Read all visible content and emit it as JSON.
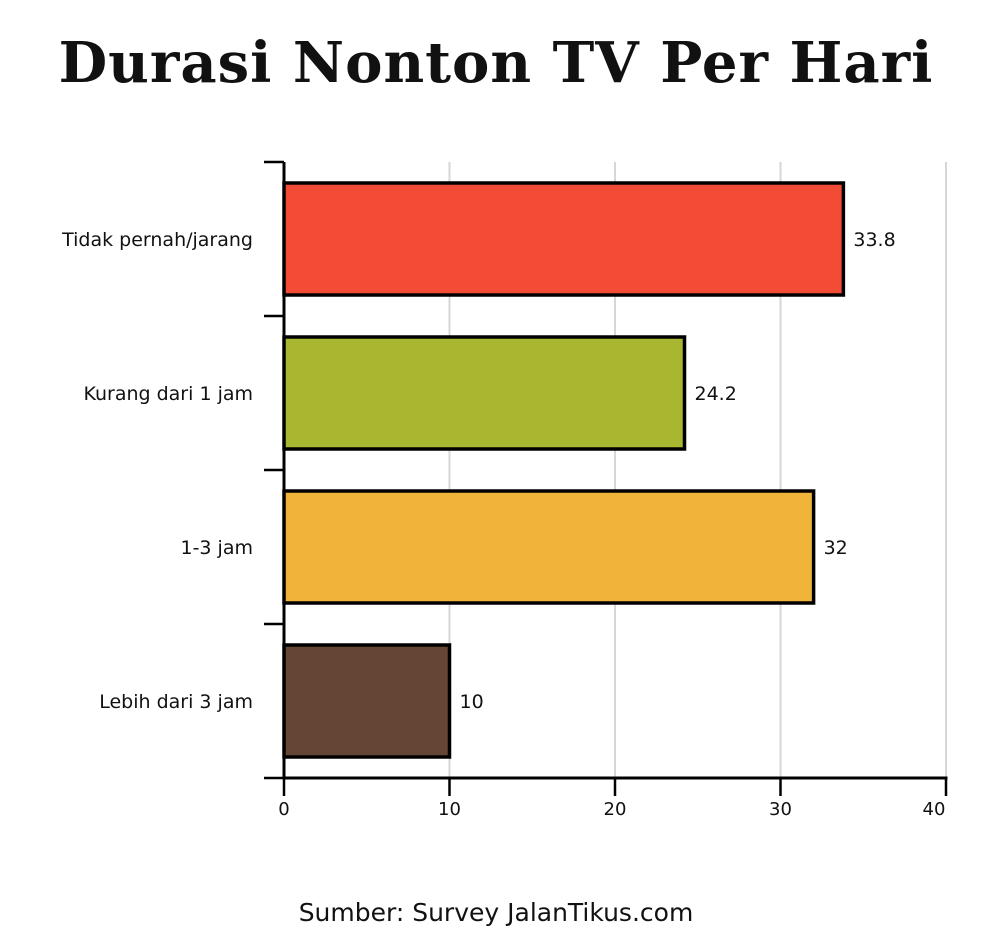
{
  "chart_data": {
    "type": "bar",
    "orientation": "horizontal",
    "title": "Durasi Nonton TV Per Hari",
    "categories": [
      "Tidak pernah/jarang",
      "Kurang dari 1 jam",
      "1-3 jam",
      "Lebih dari 3 jam"
    ],
    "values": [
      33.8,
      24.2,
      32,
      10
    ],
    "value_labels": [
      "33.8",
      "24.2",
      "32",
      "10"
    ],
    "colors": [
      "#f24c36",
      "#a8b630",
      "#f1b43b",
      "#654634"
    ],
    "xlim": [
      0,
      40
    ],
    "xticks": [
      0,
      10,
      20,
      30,
      40
    ],
    "xtick_labels": [
      "0",
      "10",
      "20",
      "30",
      "40"
    ],
    "grid": true,
    "xlabel": "",
    "ylabel": ""
  },
  "footer": {
    "source": "Sumber: Survey JalanTikus.com"
  }
}
